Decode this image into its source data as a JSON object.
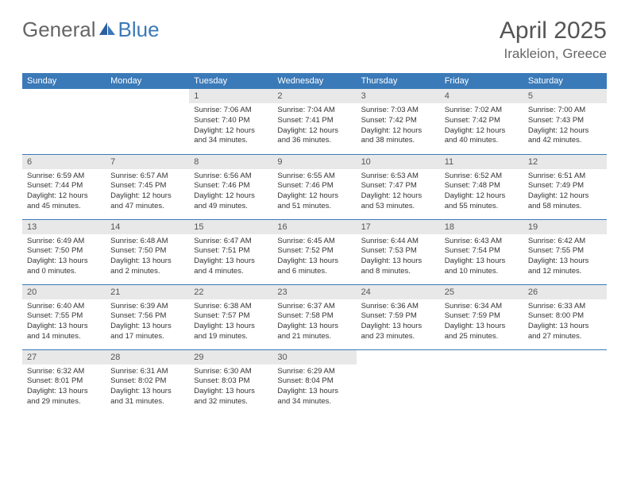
{
  "brand": {
    "part1": "General",
    "part2": "Blue"
  },
  "title": "April 2025",
  "location": "Irakleion, Greece",
  "colors": {
    "header_bg": "#3b7ab8",
    "header_text": "#ffffff",
    "daynum_bg": "#e8e8e8",
    "text": "#333333",
    "rule": "#3b7ab8",
    "background": "#ffffff"
  },
  "weekdays": [
    "Sunday",
    "Monday",
    "Tuesday",
    "Wednesday",
    "Thursday",
    "Friday",
    "Saturday"
  ],
  "weeks": [
    [
      null,
      null,
      {
        "n": "1",
        "lines": [
          "Sunrise: 7:06 AM",
          "Sunset: 7:40 PM",
          "Daylight: 12 hours and 34 minutes."
        ]
      },
      {
        "n": "2",
        "lines": [
          "Sunrise: 7:04 AM",
          "Sunset: 7:41 PM",
          "Daylight: 12 hours and 36 minutes."
        ]
      },
      {
        "n": "3",
        "lines": [
          "Sunrise: 7:03 AM",
          "Sunset: 7:42 PM",
          "Daylight: 12 hours and 38 minutes."
        ]
      },
      {
        "n": "4",
        "lines": [
          "Sunrise: 7:02 AM",
          "Sunset: 7:42 PM",
          "Daylight: 12 hours and 40 minutes."
        ]
      },
      {
        "n": "5",
        "lines": [
          "Sunrise: 7:00 AM",
          "Sunset: 7:43 PM",
          "Daylight: 12 hours and 42 minutes."
        ]
      }
    ],
    [
      {
        "n": "6",
        "lines": [
          "Sunrise: 6:59 AM",
          "Sunset: 7:44 PM",
          "Daylight: 12 hours and 45 minutes."
        ]
      },
      {
        "n": "7",
        "lines": [
          "Sunrise: 6:57 AM",
          "Sunset: 7:45 PM",
          "Daylight: 12 hours and 47 minutes."
        ]
      },
      {
        "n": "8",
        "lines": [
          "Sunrise: 6:56 AM",
          "Sunset: 7:46 PM",
          "Daylight: 12 hours and 49 minutes."
        ]
      },
      {
        "n": "9",
        "lines": [
          "Sunrise: 6:55 AM",
          "Sunset: 7:46 PM",
          "Daylight: 12 hours and 51 minutes."
        ]
      },
      {
        "n": "10",
        "lines": [
          "Sunrise: 6:53 AM",
          "Sunset: 7:47 PM",
          "Daylight: 12 hours and 53 minutes."
        ]
      },
      {
        "n": "11",
        "lines": [
          "Sunrise: 6:52 AM",
          "Sunset: 7:48 PM",
          "Daylight: 12 hours and 55 minutes."
        ]
      },
      {
        "n": "12",
        "lines": [
          "Sunrise: 6:51 AM",
          "Sunset: 7:49 PM",
          "Daylight: 12 hours and 58 minutes."
        ]
      }
    ],
    [
      {
        "n": "13",
        "lines": [
          "Sunrise: 6:49 AM",
          "Sunset: 7:50 PM",
          "Daylight: 13 hours and 0 minutes."
        ]
      },
      {
        "n": "14",
        "lines": [
          "Sunrise: 6:48 AM",
          "Sunset: 7:50 PM",
          "Daylight: 13 hours and 2 minutes."
        ]
      },
      {
        "n": "15",
        "lines": [
          "Sunrise: 6:47 AM",
          "Sunset: 7:51 PM",
          "Daylight: 13 hours and 4 minutes."
        ]
      },
      {
        "n": "16",
        "lines": [
          "Sunrise: 6:45 AM",
          "Sunset: 7:52 PM",
          "Daylight: 13 hours and 6 minutes."
        ]
      },
      {
        "n": "17",
        "lines": [
          "Sunrise: 6:44 AM",
          "Sunset: 7:53 PM",
          "Daylight: 13 hours and 8 minutes."
        ]
      },
      {
        "n": "18",
        "lines": [
          "Sunrise: 6:43 AM",
          "Sunset: 7:54 PM",
          "Daylight: 13 hours and 10 minutes."
        ]
      },
      {
        "n": "19",
        "lines": [
          "Sunrise: 6:42 AM",
          "Sunset: 7:55 PM",
          "Daylight: 13 hours and 12 minutes."
        ]
      }
    ],
    [
      {
        "n": "20",
        "lines": [
          "Sunrise: 6:40 AM",
          "Sunset: 7:55 PM",
          "Daylight: 13 hours and 14 minutes."
        ]
      },
      {
        "n": "21",
        "lines": [
          "Sunrise: 6:39 AM",
          "Sunset: 7:56 PM",
          "Daylight: 13 hours and 17 minutes."
        ]
      },
      {
        "n": "22",
        "lines": [
          "Sunrise: 6:38 AM",
          "Sunset: 7:57 PM",
          "Daylight: 13 hours and 19 minutes."
        ]
      },
      {
        "n": "23",
        "lines": [
          "Sunrise: 6:37 AM",
          "Sunset: 7:58 PM",
          "Daylight: 13 hours and 21 minutes."
        ]
      },
      {
        "n": "24",
        "lines": [
          "Sunrise: 6:36 AM",
          "Sunset: 7:59 PM",
          "Daylight: 13 hours and 23 minutes."
        ]
      },
      {
        "n": "25",
        "lines": [
          "Sunrise: 6:34 AM",
          "Sunset: 7:59 PM",
          "Daylight: 13 hours and 25 minutes."
        ]
      },
      {
        "n": "26",
        "lines": [
          "Sunrise: 6:33 AM",
          "Sunset: 8:00 PM",
          "Daylight: 13 hours and 27 minutes."
        ]
      }
    ],
    [
      {
        "n": "27",
        "lines": [
          "Sunrise: 6:32 AM",
          "Sunset: 8:01 PM",
          "Daylight: 13 hours and 29 minutes."
        ]
      },
      {
        "n": "28",
        "lines": [
          "Sunrise: 6:31 AM",
          "Sunset: 8:02 PM",
          "Daylight: 13 hours and 31 minutes."
        ]
      },
      {
        "n": "29",
        "lines": [
          "Sunrise: 6:30 AM",
          "Sunset: 8:03 PM",
          "Daylight: 13 hours and 32 minutes."
        ]
      },
      {
        "n": "30",
        "lines": [
          "Sunrise: 6:29 AM",
          "Sunset: 8:04 PM",
          "Daylight: 13 hours and 34 minutes."
        ]
      },
      null,
      null,
      null
    ]
  ]
}
